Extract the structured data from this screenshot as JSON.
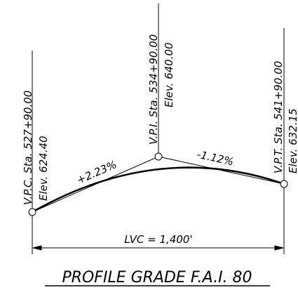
{
  "points": [
    {
      "station": "V.P.C. Sta. 527+90.00",
      "elevation": "Elev. 624.40"
    },
    {
      "station": "V.P.I. Sta. 534+90.00",
      "elevation": "Elev. 640.00"
    },
    {
      "station": "V.P.T. Sta. 541+90.00",
      "elevation": "Elev. 632.15"
    }
  ],
  "grades": [
    "+2.23%",
    "-1.12%"
  ],
  "length": "LVC = 1,400'",
  "title": "PROFILE GRADE F.A.I. 80"
}
